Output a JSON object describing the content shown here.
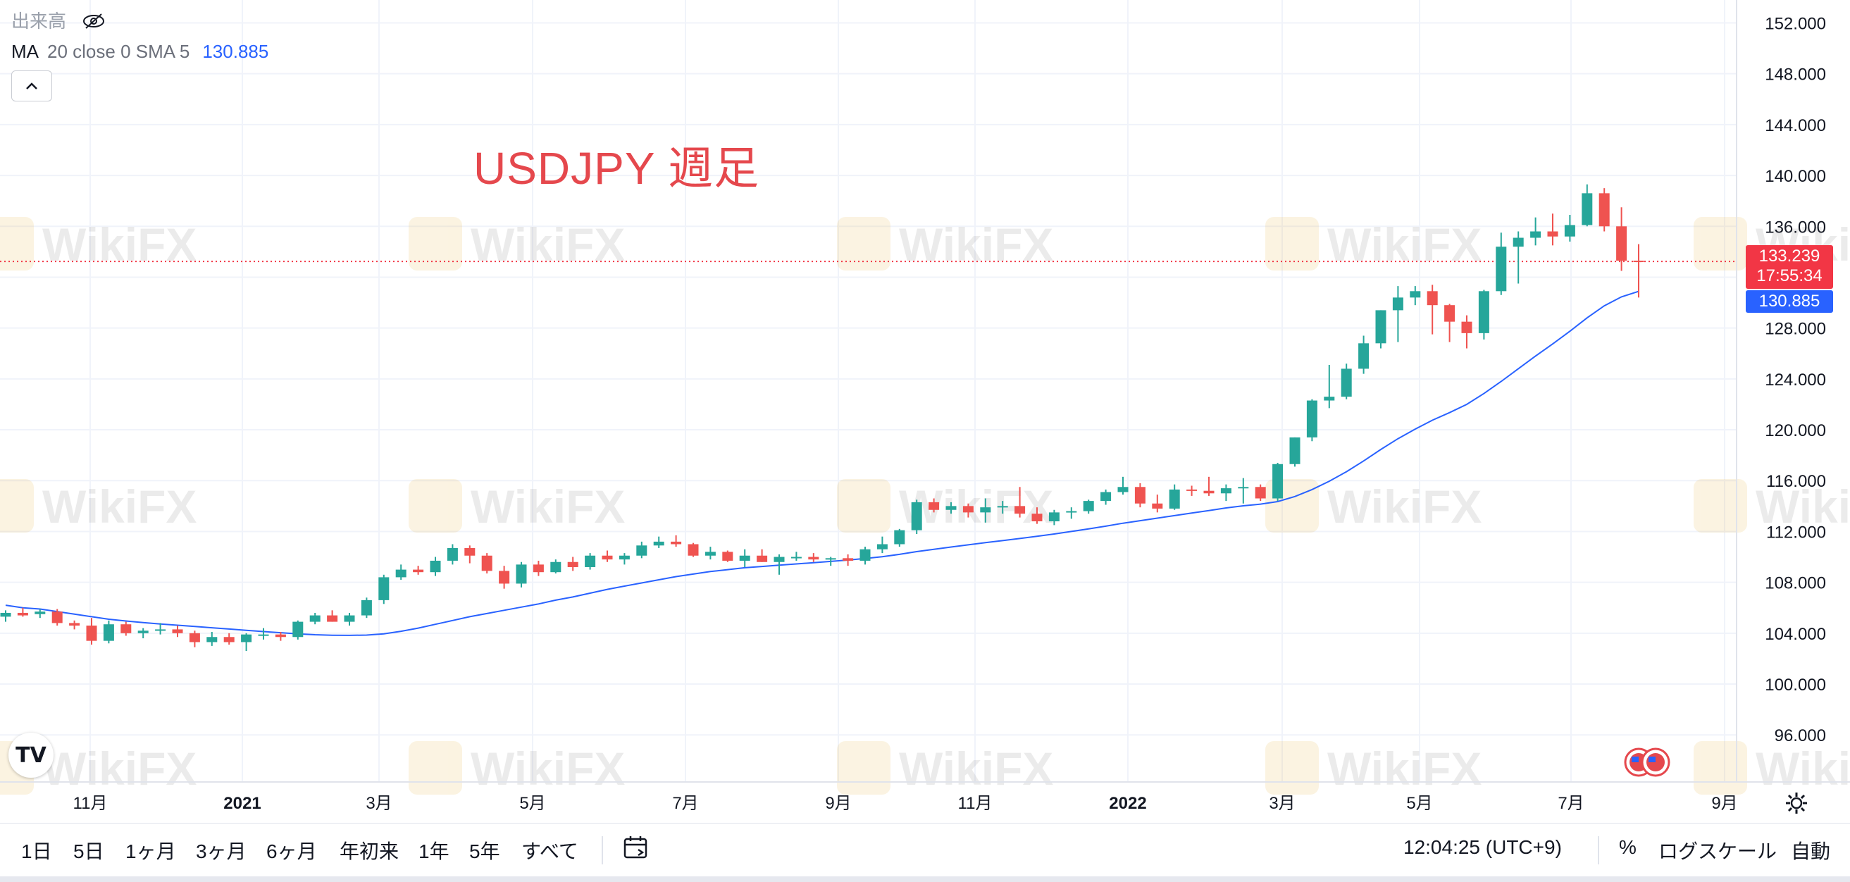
{
  "legend": {
    "volume_label": "出来高",
    "volume_icon": "eye-off-icon",
    "ma_name": "MA",
    "ma_params": "20 close 0 SMA 5",
    "ma_value": "130.885",
    "collapse_icon": "chevron-up-icon"
  },
  "annotation": "USDJPY 週足",
  "logo_text": "TV",
  "price_tags": {
    "last_price": "133.239",
    "countdown": "17:55:34",
    "ma_price": "130.885"
  },
  "toolbar": {
    "ranges": [
      "1日",
      "5日",
      "1ヶ月",
      "3ヶ月",
      "6ヶ月",
      "年初来",
      "1年",
      "5年",
      "すべて"
    ],
    "date_range_icon": "calendar-icon",
    "clock": "12:04:25 (UTC+9)",
    "percent": "%",
    "log_scale": "ログスケール",
    "auto": "自動"
  },
  "watermark": "WikiFX",
  "settings_icon": "gear-icon",
  "colors": {
    "up": "#26a69a",
    "down": "#ef5350",
    "ma_line": "#2962ff",
    "annotation": "#e5484d",
    "last_price_line": "#f23645"
  },
  "chart_data": {
    "type": "candlestick",
    "title": "USDJPY 週足",
    "x_tick_labels": [
      "11月",
      "2021",
      "3月",
      "5月",
      "7月",
      "9月",
      "11月",
      "2022",
      "3月",
      "5月",
      "7月",
      "9月"
    ],
    "y_tick_labels": [
      "152.000",
      "148.000",
      "144.000",
      "140.000",
      "136.000",
      "132.000",
      "128.000",
      "124.000",
      "120.000",
      "116.000",
      "112.000",
      "108.000",
      "104.000",
      "100.000",
      "96.000"
    ],
    "ylim": [
      92.3,
      153.8
    ],
    "grid": true,
    "last_price": 133.239,
    "candles_ohlc": [
      [
        105.3,
        105.8,
        104.9,
        105.6
      ],
      [
        105.6,
        106.0,
        105.3,
        105.4
      ],
      [
        105.5,
        105.9,
        105.2,
        105.7
      ],
      [
        105.7,
        105.9,
        104.6,
        104.8
      ],
      [
        104.8,
        105.0,
        104.3,
        104.6
      ],
      [
        104.6,
        105.2,
        103.1,
        103.4
      ],
      [
        103.4,
        105.0,
        103.2,
        104.7
      ],
      [
        104.7,
        104.9,
        103.8,
        104.0
      ],
      [
        104.0,
        104.4,
        103.6,
        104.2
      ],
      [
        104.2,
        104.8,
        103.9,
        104.3
      ],
      [
        104.3,
        104.6,
        103.7,
        104.0
      ],
      [
        104.0,
        104.2,
        102.9,
        103.3
      ],
      [
        103.3,
        104.1,
        103.0,
        103.7
      ],
      [
        103.7,
        104.0,
        103.1,
        103.3
      ],
      [
        103.3,
        104.0,
        102.6,
        103.9
      ],
      [
        103.9,
        104.4,
        103.5,
        103.9
      ],
      [
        103.9,
        104.1,
        103.4,
        103.7
      ],
      [
        103.7,
        105.0,
        103.5,
        104.9
      ],
      [
        104.9,
        105.6,
        104.7,
        105.4
      ],
      [
        105.4,
        105.8,
        104.9,
        104.9
      ],
      [
        104.9,
        105.6,
        104.6,
        105.4
      ],
      [
        105.4,
        106.8,
        105.2,
        106.6
      ],
      [
        106.6,
        108.6,
        106.3,
        108.4
      ],
      [
        108.4,
        109.4,
        108.2,
        109.0
      ],
      [
        109.0,
        109.3,
        108.6,
        108.8
      ],
      [
        108.8,
        110.0,
        108.5,
        109.7
      ],
      [
        109.7,
        111.0,
        109.4,
        110.7
      ],
      [
        110.7,
        110.9,
        109.5,
        110.1
      ],
      [
        110.1,
        110.3,
        108.7,
        108.9
      ],
      [
        108.9,
        109.3,
        107.5,
        107.9
      ],
      [
        107.9,
        109.6,
        107.6,
        109.4
      ],
      [
        109.4,
        109.7,
        108.5,
        108.8
      ],
      [
        108.8,
        109.8,
        108.7,
        109.6
      ],
      [
        109.6,
        110.0,
        108.9,
        109.2
      ],
      [
        109.2,
        110.3,
        109.0,
        110.1
      ],
      [
        110.1,
        110.5,
        109.6,
        109.8
      ],
      [
        109.8,
        110.3,
        109.4,
        110.1
      ],
      [
        110.1,
        111.2,
        109.9,
        110.9
      ],
      [
        110.9,
        111.6,
        110.7,
        111.2
      ],
      [
        111.2,
        111.7,
        110.8,
        111.0
      ],
      [
        111.0,
        111.1,
        110.0,
        110.1
      ],
      [
        110.1,
        110.8,
        109.8,
        110.4
      ],
      [
        110.4,
        110.5,
        109.6,
        109.7
      ],
      [
        109.7,
        110.6,
        109.2,
        110.1
      ],
      [
        110.1,
        110.6,
        109.6,
        109.6
      ],
      [
        109.6,
        110.2,
        108.6,
        110.0
      ],
      [
        110.0,
        110.4,
        109.7,
        110.0
      ],
      [
        110.0,
        110.3,
        109.6,
        109.8
      ],
      [
        109.8,
        110.0,
        109.3,
        109.9
      ],
      [
        109.9,
        110.2,
        109.3,
        109.7
      ],
      [
        109.7,
        110.8,
        109.4,
        110.6
      ],
      [
        110.6,
        111.6,
        110.3,
        111.0
      ],
      [
        111.0,
        112.2,
        110.8,
        112.1
      ],
      [
        112.1,
        114.5,
        111.8,
        114.3
      ],
      [
        114.3,
        114.6,
        113.5,
        113.7
      ],
      [
        113.7,
        114.3,
        113.4,
        114.0
      ],
      [
        114.0,
        114.2,
        113.1,
        113.5
      ],
      [
        113.5,
        114.6,
        112.7,
        113.9
      ],
      [
        113.9,
        114.4,
        113.4,
        114.0
      ],
      [
        114.0,
        115.5,
        113.1,
        113.4
      ],
      [
        113.4,
        113.9,
        112.6,
        112.8
      ],
      [
        112.8,
        113.7,
        112.5,
        113.5
      ],
      [
        113.5,
        113.9,
        113.0,
        113.6
      ],
      [
        113.6,
        114.5,
        113.4,
        114.4
      ],
      [
        114.4,
        115.3,
        114.1,
        115.1
      ],
      [
        115.1,
        116.3,
        114.9,
        115.5
      ],
      [
        115.5,
        115.8,
        113.9,
        114.2
      ],
      [
        114.2,
        114.9,
        113.5,
        113.8
      ],
      [
        113.8,
        115.7,
        113.7,
        115.3
      ],
      [
        115.3,
        115.6,
        114.8,
        115.2
      ],
      [
        115.2,
        116.3,
        114.8,
        115.0
      ],
      [
        115.0,
        115.7,
        114.4,
        115.4
      ],
      [
        115.4,
        116.2,
        114.2,
        115.5
      ],
      [
        115.5,
        115.7,
        114.4,
        114.6
      ],
      [
        114.6,
        117.4,
        114.4,
        117.3
      ],
      [
        117.3,
        119.4,
        117.1,
        119.4
      ],
      [
        119.4,
        122.4,
        119.1,
        122.3
      ],
      [
        122.3,
        125.1,
        121.7,
        122.6
      ],
      [
        122.6,
        125.2,
        122.4,
        124.8
      ],
      [
        124.8,
        127.4,
        124.4,
        126.8
      ],
      [
        126.8,
        129.4,
        126.4,
        129.4
      ],
      [
        129.4,
        131.3,
        126.9,
        130.4
      ],
      [
        130.4,
        131.3,
        129.8,
        130.9
      ],
      [
        130.9,
        131.4,
        127.5,
        129.8
      ],
      [
        129.8,
        129.9,
        126.9,
        128.5
      ],
      [
        128.5,
        129.0,
        126.4,
        127.6
      ],
      [
        127.6,
        131.0,
        127.1,
        130.9
      ],
      [
        130.9,
        135.5,
        130.6,
        134.4
      ],
      [
        134.4,
        135.6,
        131.5,
        135.1
      ],
      [
        135.1,
        136.7,
        134.5,
        135.6
      ],
      [
        135.6,
        137.0,
        134.5,
        135.2
      ],
      [
        135.2,
        136.9,
        134.8,
        136.1
      ],
      [
        136.1,
        139.3,
        136.0,
        138.6
      ],
      [
        138.6,
        139.0,
        135.6,
        136.0
      ],
      [
        136.0,
        137.5,
        132.5,
        133.3
      ],
      [
        133.3,
        134.6,
        130.4,
        133.239
      ]
    ],
    "ma_series": [
      106.2,
      106.0,
      105.9,
      105.7,
      105.5,
      105.3,
      105.1,
      104.96,
      104.84,
      104.73,
      104.63,
      104.53,
      104.43,
      104.33,
      104.23,
      104.13,
      104.04,
      103.95,
      103.88,
      103.84,
      103.83,
      103.85,
      103.95,
      104.15,
      104.4,
      104.7,
      105.0,
      105.3,
      105.55,
      105.8,
      106.05,
      106.3,
      106.6,
      106.85,
      107.15,
      107.45,
      107.7,
      107.95,
      108.2,
      108.45,
      108.65,
      108.85,
      109.0,
      109.15,
      109.25,
      109.35,
      109.45,
      109.55,
      109.65,
      109.75,
      109.88,
      110.02,
      110.2,
      110.42,
      110.6,
      110.78,
      110.95,
      111.12,
      111.28,
      111.45,
      111.62,
      111.8,
      112.0,
      112.2,
      112.42,
      112.65,
      112.85,
      113.05,
      113.25,
      113.45,
      113.65,
      113.85,
      114.02,
      114.15,
      114.35,
      114.75,
      115.3,
      115.95,
      116.7,
      117.55,
      118.45,
      119.3,
      120.05,
      120.75,
      121.35,
      122.0,
      122.85,
      123.8,
      124.8,
      125.8,
      126.75,
      127.75,
      128.8,
      129.75,
      130.45,
      130.885
    ]
  }
}
